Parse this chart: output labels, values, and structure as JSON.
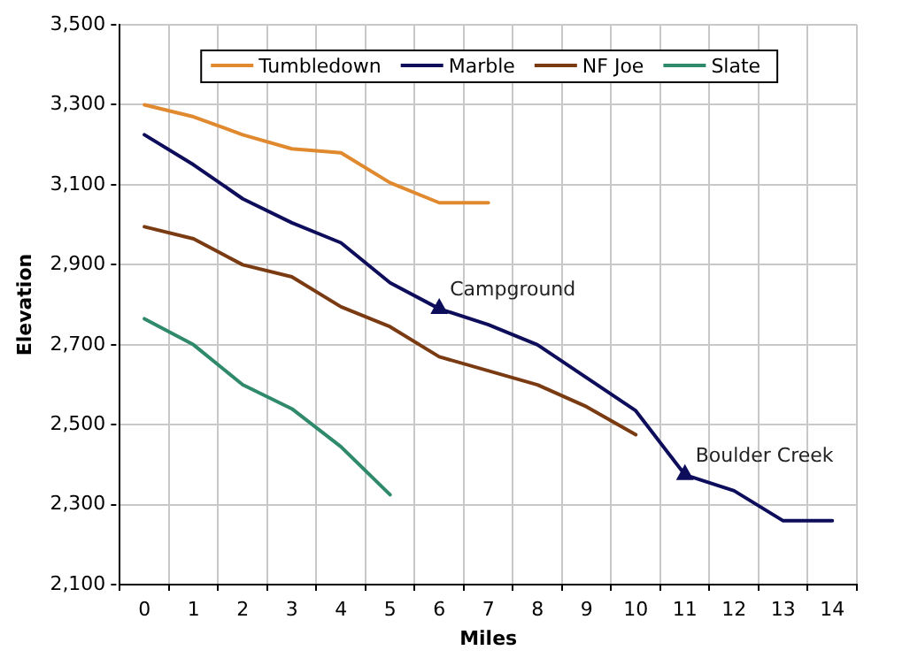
{
  "chart_data": {
    "type": "line",
    "xlabel": "Miles",
    "ylabel": "Elevation",
    "xlim": [
      -0.5,
      14.5
    ],
    "xticks": [
      0,
      1,
      2,
      3,
      4,
      5,
      6,
      7,
      8,
      9,
      10,
      11,
      12,
      13,
      14
    ],
    "ylim": [
      2100,
      3500
    ],
    "yticks": [
      {
        "value": 2100,
        "label": "2,100"
      },
      {
        "value": 2300,
        "label": "2,300"
      },
      {
        "value": 2500,
        "label": "2,500"
      },
      {
        "value": 2700,
        "label": "2,700"
      },
      {
        "value": 2900,
        "label": "2,900"
      },
      {
        "value": 3100,
        "label": "3,100"
      },
      {
        "value": 3300,
        "label": "3,300"
      },
      {
        "value": 3500,
        "label": "3,500"
      }
    ],
    "series": [
      {
        "name": "Tumbledown",
        "color": "#e0892e",
        "x": [
          0,
          1,
          2,
          3,
          4,
          5,
          6,
          7
        ],
        "values": [
          3300,
          3270,
          3225,
          3190,
          3180,
          3105,
          3055,
          3055
        ]
      },
      {
        "name": "Marble",
        "color": "#0d0d5c",
        "x": [
          0,
          1,
          2,
          3,
          4,
          5,
          6,
          7,
          8,
          10,
          11,
          12,
          13,
          14
        ],
        "values": [
          3225,
          3150,
          3065,
          3005,
          2955,
          2855,
          2790,
          2750,
          2700,
          2535,
          2375,
          2335,
          2260,
          2260
        ]
      },
      {
        "name": "NF Joe",
        "color": "#7a3a12",
        "x": [
          0,
          1,
          2,
          3,
          4,
          5,
          6,
          8,
          9,
          10
        ],
        "values": [
          2995,
          2965,
          2900,
          2870,
          2795,
          2745,
          2670,
          2600,
          2545,
          2475
        ]
      },
      {
        "name": "Slate",
        "color": "#2f8a6c",
        "x": [
          0,
          1,
          2,
          3,
          4,
          5
        ],
        "values": [
          2765,
          2700,
          2600,
          2540,
          2445,
          2325
        ]
      }
    ],
    "annotations": [
      {
        "text": "Campground",
        "x": 6,
        "y": 2790
      },
      {
        "text": "Boulder Creek",
        "x": 11,
        "y": 2375
      }
    ],
    "grid": true,
    "legend": "top",
    "marker": "none",
    "line_style": "solid"
  }
}
